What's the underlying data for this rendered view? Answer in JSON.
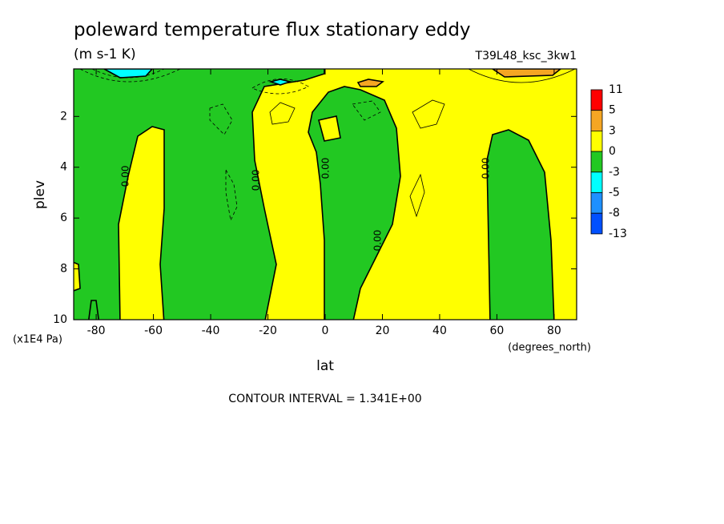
{
  "chart_data": {
    "type": "contour",
    "title": "poleward temperature flux stationary eddy",
    "units": "(m s-1 K)",
    "dataset": "T39L48_ksc_3kw1",
    "x_label": "lat",
    "x_units": "(degrees_north)",
    "y_label": "plev",
    "y_units": "(x1E4 Pa)",
    "note": "CONTOUR INTERVAL = 1.341E+00",
    "xlim": [
      -87.86,
      87.86
    ],
    "xticks": [
      -80,
      -60,
      -40,
      -20,
      0,
      20,
      40,
      60,
      80
    ],
    "ylim": [
      10,
      0.13
    ],
    "yticks": [
      2,
      4,
      6,
      8,
      10
    ],
    "colorbar": {
      "levels": [
        11,
        5,
        3,
        0,
        -3,
        -5,
        -8,
        -13
      ],
      "colors": [
        "#ff0000",
        "#f5a623",
        "#ffff00",
        "#22c822",
        "#00ffff",
        "#1e90ff",
        "#0050ff"
      ]
    },
    "contour_labels": [
      {
        "value": 0,
        "label": "0.00",
        "x": -69.7,
        "y": 4.35
      },
      {
        "value": 0,
        "label": "0.00",
        "x": -24.1,
        "y": 4.51
      },
      {
        "value": 0,
        "label": "0.00",
        "x": 0.3,
        "y": 4.04
      },
      {
        "value": 0,
        "label": "0.00",
        "x": 18.5,
        "y": 6.88
      },
      {
        "value": 0,
        "label": "0.00",
        "x": 56.2,
        "y": 4.04
      }
    ]
  }
}
